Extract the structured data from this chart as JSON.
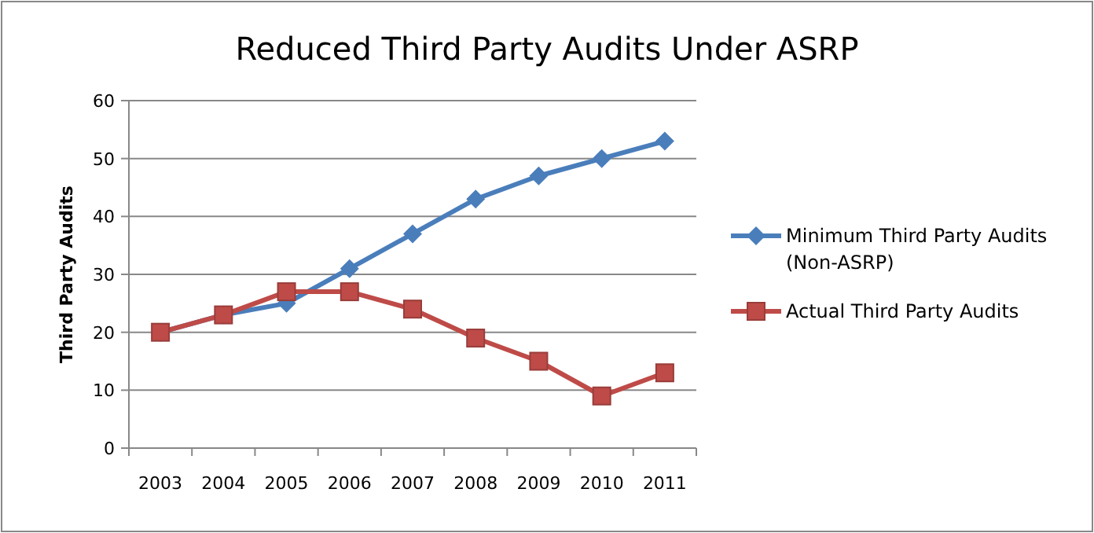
{
  "chart_data": {
    "type": "line",
    "title": "Reduced Third Party Audits Under ASRP",
    "ylabel": "Third Party Audits",
    "categories": [
      "2003",
      "2004",
      "2005",
      "2006",
      "2007",
      "2008",
      "2009",
      "2010",
      "2011"
    ],
    "series": [
      {
        "name": "Minimum Third Party Audits (Non-ASRP)",
        "color": "#4a7ebb",
        "marker": "diamond",
        "values": [
          20,
          23,
          25,
          31,
          37,
          43,
          47,
          50,
          53
        ]
      },
      {
        "name": "Actual Third Party Audits",
        "color": "#be4b48",
        "marker": "square",
        "values": [
          20,
          23,
          27,
          27,
          24,
          19,
          15,
          9,
          13
        ]
      }
    ],
    "ylim": [
      0,
      60
    ],
    "yticks": [
      0,
      10,
      20,
      30,
      40,
      50,
      60
    ],
    "grid": "y",
    "legend": "right",
    "line_style": "solid"
  }
}
